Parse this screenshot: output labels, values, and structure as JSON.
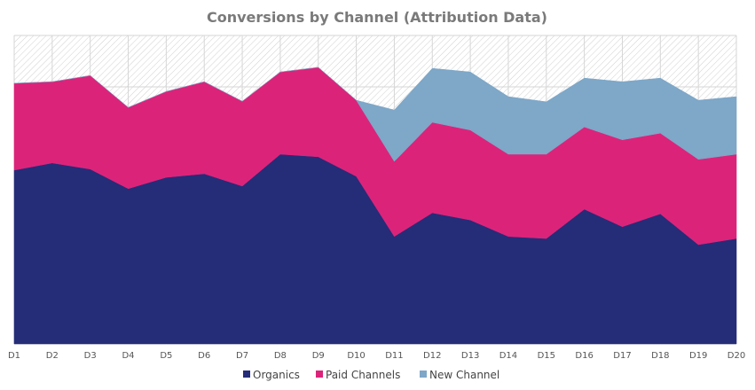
{
  "chart_data": {
    "type": "area",
    "stacked": true,
    "title": "Conversions by Channel (Attribution Data)",
    "xlabel": "",
    "ylabel": "",
    "categories": [
      "D1",
      "D2",
      "D3",
      "D4",
      "D5",
      "D6",
      "D7",
      "D8",
      "D9",
      "D10",
      "D11",
      "D12",
      "D13",
      "D14",
      "D15",
      "D16",
      "D17",
      "D18",
      "D19",
      "D20"
    ],
    "series": [
      {
        "name": "Organics",
        "color": "#252c78",
        "values": [
          338,
          352,
          340,
          302,
          324,
          331,
          307,
          369,
          364,
          326,
          209,
          255,
          241,
          209,
          205,
          262,
          228,
          253,
          193,
          205
        ]
      },
      {
        "name": "Paid Channels",
        "color": "#dc237a",
        "values": [
          169,
          158,
          182,
          158,
          167,
          179,
          165,
          160,
          174,
          148,
          146,
          176,
          175,
          160,
          164,
          160,
          169,
          157,
          166,
          164
        ]
      },
      {
        "name": "New Channel",
        "color": "#7ea7c8",
        "values": [
          0,
          0,
          0,
          0,
          0,
          0,
          0,
          0,
          0,
          0,
          100,
          105,
          113,
          112,
          102,
          95,
          113,
          107,
          115,
          112
        ]
      }
    ],
    "ylim": [
      0,
      600
    ],
    "y_axis_labels_shown": false,
    "grid": true,
    "legend": "bottom"
  }
}
